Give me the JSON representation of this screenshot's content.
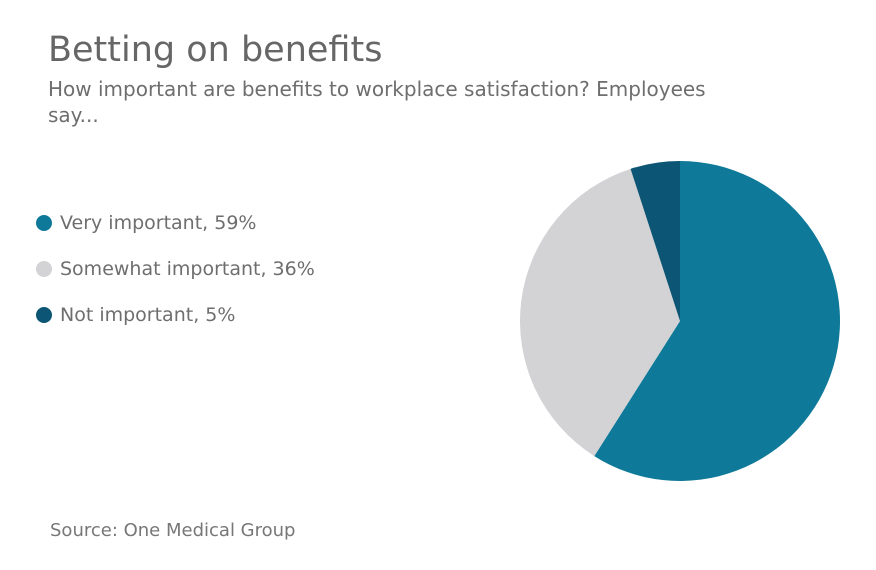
{
  "chart_data": {
    "type": "pie",
    "title": "Betting on benefits",
    "subtitle": "How important are benefits to workplace satisfaction? Employees say...",
    "slices": [
      {
        "label": "Very important, 59%",
        "name": "Very important",
        "value": 59,
        "color": "#0e7998"
      },
      {
        "label": "Somewhat important, 36%",
        "name": "Somewhat important",
        "value": 36,
        "color": "#d3d2d4"
      },
      {
        "label": "Not important, 5%",
        "name": "Not important",
        "value": 5,
        "color": "#0c5574"
      }
    ],
    "legend_placement": "left",
    "source": "Source: One Medical Group"
  }
}
